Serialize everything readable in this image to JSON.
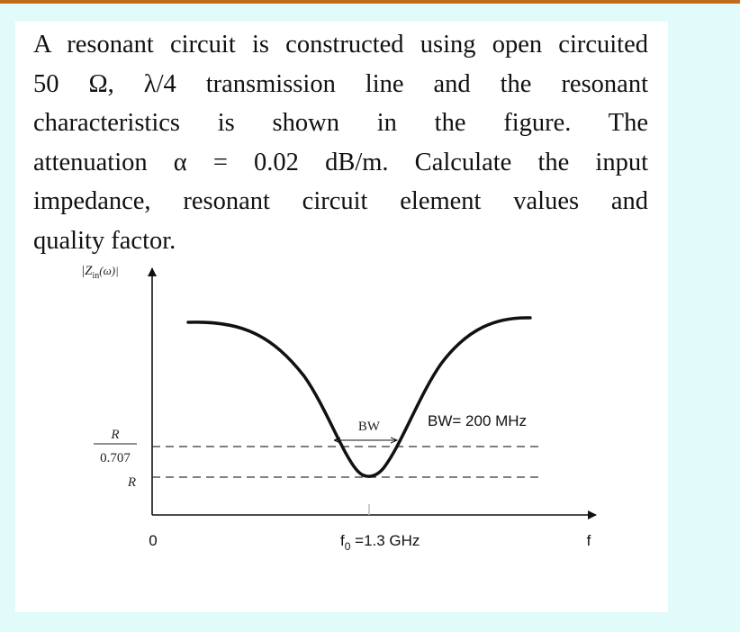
{
  "problem": {
    "lines": [
      "A resonant circuit is constructed using open circuited",
      "50 Ω, λ/4 transmission line and the resonant",
      "characteristics is shown in the figure. The",
      "attenuation α = 0.02 dB/m. Calculate the input",
      "impedance, resonant circuit element values and",
      "quality factor."
    ]
  },
  "figure": {
    "y_axis_label_main": "|Z",
    "y_axis_label_sub": "in",
    "y_axis_label_tail": "(ω)|",
    "level_upper_num": "R",
    "level_upper_den": "0.707",
    "level_lower": "R",
    "origin_label": "0",
    "x_axis_label": "f",
    "f0_label_main": "f",
    "f0_label_sub": "0",
    "f0_label_tail": " =1.3 GHz",
    "bw_arrow_label": "BW",
    "bw_value_label": "BW= 200 MHz"
  },
  "colors": {
    "background": "#e1fbfb",
    "card": "#ffffff",
    "top_bar": "#c46a1e",
    "ink": "#111111"
  }
}
